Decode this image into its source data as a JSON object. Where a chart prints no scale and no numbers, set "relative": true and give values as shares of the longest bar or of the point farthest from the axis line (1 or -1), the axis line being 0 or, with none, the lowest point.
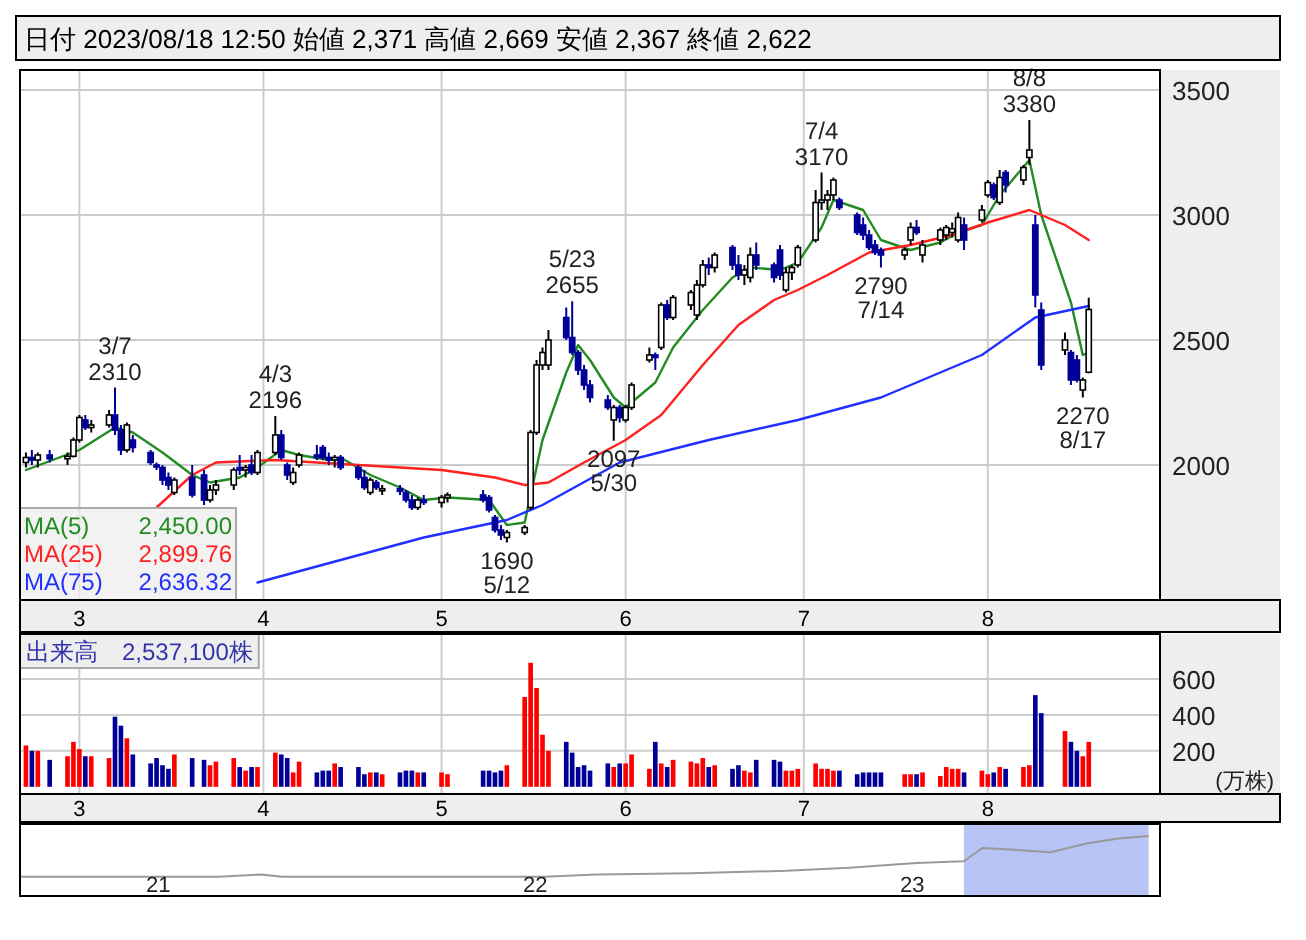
{
  "chart_data": [
    {
      "type": "candlestick",
      "title": "日付 2023/08/18 12:50 始値 2,371 高値 2,669 安値 2,367 終値 2,622",
      "x": [
        "2023-02-20",
        "2023-02-21",
        "2023-02-22",
        "2023-02-24",
        "2023-02-27",
        "2023-02-28",
        "2023-03-01",
        "2023-03-02",
        "2023-03-03",
        "2023-03-06",
        "2023-03-07",
        "2023-03-08",
        "2023-03-09",
        "2023-03-10",
        "2023-03-13",
        "2023-03-14",
        "2023-03-15",
        "2023-03-16",
        "2023-03-17",
        "2023-03-20",
        "2023-03-22",
        "2023-03-23",
        "2023-03-24",
        "2023-03-27",
        "2023-03-28",
        "2023-03-29",
        "2023-03-30",
        "2023-03-31",
        "2023-04-03",
        "2023-04-04",
        "2023-04-05",
        "2023-04-06",
        "2023-04-07",
        "2023-04-10",
        "2023-04-11",
        "2023-04-12",
        "2023-04-13",
        "2023-04-14",
        "2023-04-17",
        "2023-04-18",
        "2023-04-19",
        "2023-04-20",
        "2023-04-21",
        "2023-04-24",
        "2023-04-25",
        "2023-04-26",
        "2023-04-27",
        "2023-04-28",
        "2023-05-01",
        "2023-05-02",
        "2023-05-08",
        "2023-05-09",
        "2023-05-10",
        "2023-05-11",
        "2023-05-12",
        "2023-05-15",
        "2023-05-16",
        "2023-05-17",
        "2023-05-18",
        "2023-05-19",
        "2023-05-22",
        "2023-05-23",
        "2023-05-24",
        "2023-05-25",
        "2023-05-26",
        "2023-05-29",
        "2023-05-30",
        "2023-05-31",
        "2023-06-01",
        "2023-06-02",
        "2023-06-05",
        "2023-06-06",
        "2023-06-07",
        "2023-06-08",
        "2023-06-09",
        "2023-06-12",
        "2023-06-13",
        "2023-06-14",
        "2023-06-15",
        "2023-06-16",
        "2023-06-19",
        "2023-06-20",
        "2023-06-21",
        "2023-06-22",
        "2023-06-23",
        "2023-06-26",
        "2023-06-27",
        "2023-06-28",
        "2023-06-29",
        "2023-06-30",
        "2023-07-03",
        "2023-07-04",
        "2023-07-05",
        "2023-07-06",
        "2023-07-07",
        "2023-07-10",
        "2023-07-11",
        "2023-07-12",
        "2023-07-13",
        "2023-07-14",
        "2023-07-18",
        "2023-07-19",
        "2023-07-20",
        "2023-07-21",
        "2023-07-24",
        "2023-07-25",
        "2023-07-26",
        "2023-07-27",
        "2023-07-28",
        "2023-07-31",
        "2023-08-01",
        "2023-08-02",
        "2023-08-03",
        "2023-08-04",
        "2023-08-07",
        "2023-08-08",
        "2023-08-09",
        "2023-08-10",
        "2023-08-14",
        "2023-08-15",
        "2023-08-16",
        "2023-08-17",
        "2023-08-18"
      ],
      "ohlc": [
        [
          2010,
          2050,
          1990,
          2030
        ],
        [
          2030,
          2060,
          2000,
          2020
        ],
        [
          2020,
          2050,
          1990,
          2040
        ],
        [
          2040,
          2060,
          2010,
          2025
        ],
        [
          2025,
          2050,
          2000,
          2035
        ],
        [
          2035,
          2110,
          2030,
          2100
        ],
        [
          2100,
          2200,
          2090,
          2190
        ],
        [
          2180,
          2200,
          2140,
          2150
        ],
        [
          2150,
          2180,
          2130,
          2160
        ],
        [
          2160,
          2220,
          2150,
          2200
        ],
        [
          2200,
          2310,
          2120,
          2140
        ],
        [
          2140,
          2160,
          2040,
          2060
        ],
        [
          2060,
          2170,
          2050,
          2160
        ],
        [
          2100,
          2120,
          2050,
          2070
        ],
        [
          2050,
          2060,
          2000,
          2010
        ],
        [
          2000,
          2010,
          1980,
          1995
        ],
        [
          1990,
          2000,
          1920,
          1940
        ],
        [
          1950,
          1970,
          1900,
          1920
        ],
        [
          1890,
          1950,
          1880,
          1940
        ],
        [
          1950,
          2000,
          1870,
          1880
        ],
        [
          1960,
          1980,
          1840,
          1860
        ],
        [
          1860,
          1920,
          1850,
          1900
        ],
        [
          1900,
          1940,
          1880,
          1920
        ],
        [
          1920,
          1990,
          1900,
          1980
        ],
        [
          1990,
          2040,
          1960,
          1980
        ],
        [
          1980,
          2000,
          1950,
          1990
        ],
        [
          2000,
          2040,
          1960,
          1970
        ],
        [
          1970,
          2060,
          1960,
          2050
        ],
        [
          2050,
          2196,
          2040,
          2120
        ],
        [
          2120,
          2140,
          2020,
          2030
        ],
        [
          2000,
          2010,
          1940,
          1960
        ],
        [
          1930,
          1990,
          1920,
          1970
        ],
        [
          2000,
          2050,
          1990,
          2040
        ],
        [
          2040,
          2080,
          2020,
          2030
        ],
        [
          2070,
          2080,
          2020,
          2030
        ],
        [
          2030,
          2050,
          2000,
          2020
        ],
        [
          2020,
          2040,
          1990,
          2030
        ],
        [
          2030,
          2040,
          1980,
          1990
        ],
        [
          1990,
          2000,
          1940,
          1950
        ],
        [
          1950,
          1980,
          1900,
          1910
        ],
        [
          1890,
          1950,
          1880,
          1940
        ],
        [
          1930,
          1940,
          1900,
          1910
        ],
        [
          1900,
          1920,
          1880,
          1905
        ],
        [
          1905,
          1920,
          1880,
          1895
        ],
        [
          1890,
          1900,
          1850,
          1860
        ],
        [
          1860,
          1880,
          1820,
          1830
        ],
        [
          1830,
          1870,
          1820,
          1860
        ],
        [
          1860,
          1880,
          1840,
          1850
        ],
        [
          1850,
          1880,
          1830,
          1870
        ],
        [
          1870,
          1890,
          1850,
          1880
        ],
        [
          1880,
          1900,
          1850,
          1860
        ],
        [
          1870,
          1880,
          1810,
          1820
        ],
        [
          1790,
          1800,
          1730,
          1740
        ],
        [
          1740,
          1760,
          1700,
          1720
        ],
        [
          1710,
          1740,
          1690,
          1730
        ],
        [
          1730,
          1760,
          1720,
          1750
        ],
        [
          1830,
          2140,
          1820,
          2130
        ],
        [
          2130,
          2420,
          2120,
          2400
        ],
        [
          2400,
          2470,
          2380,
          2450
        ],
        [
          2400,
          2540,
          2380,
          2500
        ],
        [
          2590,
          2630,
          2500,
          2510
        ],
        [
          2510,
          2655,
          2440,
          2450
        ],
        [
          2450,
          2460,
          2360,
          2380
        ],
        [
          2380,
          2400,
          2300,
          2320
        ],
        [
          2320,
          2340,
          2250,
          2270
        ],
        [
          2260,
          2280,
          2220,
          2230
        ],
        [
          2180,
          2240,
          2097,
          2230
        ],
        [
          2230,
          2240,
          2170,
          2190
        ],
        [
          2180,
          2240,
          2170,
          2230
        ],
        [
          2230,
          2330,
          2220,
          2320
        ],
        [
          2420,
          2470,
          2410,
          2440
        ],
        [
          2440,
          2450,
          2380,
          2430
        ],
        [
          2470,
          2650,
          2460,
          2640
        ],
        [
          2640,
          2660,
          2580,
          2590
        ],
        [
          2590,
          2680,
          2580,
          2670
        ],
        [
          2640,
          2700,
          2620,
          2690
        ],
        [
          2600,
          2740,
          2580,
          2720
        ],
        [
          2720,
          2820,
          2710,
          2800
        ],
        [
          2800,
          2830,
          2760,
          2790
        ],
        [
          2790,
          2850,
          2770,
          2840
        ],
        [
          2870,
          2880,
          2780,
          2800
        ],
        [
          2800,
          2840,
          2740,
          2760
        ],
        [
          2760,
          2800,
          2720,
          2780
        ],
        [
          2750,
          2870,
          2730,
          2840
        ],
        [
          2840,
          2890,
          2780,
          2800
        ],
        [
          2800,
          2810,
          2730,
          2750
        ],
        [
          2860,
          2880,
          2740,
          2760
        ],
        [
          2700,
          2790,
          2690,
          2770
        ],
        [
          2770,
          2800,
          2740,
          2790
        ],
        [
          2800,
          2880,
          2790,
          2870
        ],
        [
          2900,
          3100,
          2890,
          3050
        ],
        [
          3050,
          3170,
          3020,
          3060
        ],
        [
          3060,
          3100,
          3020,
          3080
        ],
        [
          3080,
          3150,
          3060,
          3140
        ],
        [
          3060,
          3070,
          3020,
          3030
        ],
        [
          3000,
          3010,
          2920,
          2930
        ],
        [
          2960,
          2990,
          2900,
          2920
        ],
        [
          2920,
          2940,
          2860,
          2870
        ],
        [
          2880,
          2900,
          2840,
          2850
        ],
        [
          2860,
          2870,
          2790,
          2840
        ],
        [
          2840,
          2870,
          2820,
          2860
        ],
        [
          2900,
          2970,
          2880,
          2950
        ],
        [
          2950,
          2980,
          2920,
          2930
        ],
        [
          2840,
          2900,
          2810,
          2880
        ],
        [
          2900,
          2950,
          2880,
          2940
        ],
        [
          2920,
          2960,
          2900,
          2950
        ],
        [
          2930,
          2970,
          2910,
          2945
        ],
        [
          2900,
          3010,
          2890,
          2990
        ],
        [
          2960,
          2990,
          2860,
          2900
        ],
        [
          2980,
          3040,
          2970,
          3020
        ],
        [
          3080,
          3140,
          3070,
          3130
        ],
        [
          3120,
          3130,
          3060,
          3070
        ],
        [
          3050,
          3180,
          3040,
          3150
        ],
        [
          3170,
          3180,
          3090,
          3120
        ],
        [
          3140,
          3200,
          3120,
          3190
        ],
        [
          3230,
          3380,
          3200,
          3260
        ],
        [
          2960,
          3000,
          2630,
          2680
        ],
        [
          2620,
          2650,
          2380,
          2400
        ],
        [
          2460,
          2530,
          2440,
          2500
        ],
        [
          2450,
          2460,
          2320,
          2340
        ],
        [
          2420,
          2440,
          2330,
          2340
        ],
        [
          2300,
          2350,
          2270,
          2340
        ],
        [
          2371,
          2669,
          2367,
          2622
        ]
      ],
      "colors": [
        "#ffffff",
        "#000099",
        "#ffffff",
        "#000099",
        "#ffffff",
        "#ffffff",
        "#ffffff",
        "#000099",
        "#ffffff",
        "#ffffff",
        "#000099",
        "#000099",
        "#ffffff",
        "#000099",
        "#000099",
        "#000099",
        "#000099",
        "#000099",
        "#ffffff",
        "#000099",
        "#000099",
        "#ffffff",
        "#ffffff",
        "#ffffff",
        "#000099",
        "#ffffff",
        "#000099",
        "#ffffff",
        "#ffffff",
        "#000099",
        "#000099",
        "#ffffff",
        "#ffffff",
        "#000099",
        "#000099",
        "#000099",
        "#ffffff",
        "#000099",
        "#000099",
        "#000099",
        "#ffffff",
        "#000099",
        "#ffffff",
        "#000099",
        "#000099",
        "#000099",
        "#ffffff",
        "#000099",
        "#ffffff",
        "#ffffff",
        "#000099",
        "#000099",
        "#000099",
        "#000099",
        "#ffffff",
        "#ffffff",
        "#ffffff",
        "#ffffff",
        "#ffffff",
        "#ffffff",
        "#000099",
        "#000099",
        "#000099",
        "#000099",
        "#000099",
        "#000099",
        "#ffffff",
        "#000099",
        "#ffffff",
        "#ffffff",
        "#ffffff",
        "#000099",
        "#ffffff",
        "#000099",
        "#ffffff",
        "#ffffff",
        "#ffffff",
        "#ffffff",
        "#000099",
        "#ffffff",
        "#000099",
        "#000099",
        "#ffffff",
        "#ffffff",
        "#000099",
        "#000099",
        "#000099",
        "#ffffff",
        "#ffffff",
        "#ffffff",
        "#ffffff",
        "#ffffff",
        "#ffffff",
        "#ffffff",
        "#000099",
        "#000099",
        "#000099",
        "#000099",
        "#000099",
        "#000099",
        "#ffffff",
        "#ffffff",
        "#000099",
        "#ffffff",
        "#ffffff",
        "#ffffff",
        "#ffffff",
        "#ffffff",
        "#000099",
        "#ffffff",
        "#ffffff",
        "#000099",
        "#ffffff",
        "#000099",
        "#ffffff",
        "#ffffff",
        "#000099",
        "#000099",
        "#ffffff",
        "#000099",
        "#000099",
        "#ffffff",
        "#ffffff"
      ],
      "series": [
        {
          "name": "MA(5)",
          "type": "line",
          "color": "#228b22",
          "x": [
            "2023-02-20",
            "2023-03-01",
            "2023-03-07",
            "2023-03-10",
            "2023-03-15",
            "2023-03-20",
            "2023-03-23",
            "2023-03-28",
            "2023-03-31",
            "2023-04-04",
            "2023-04-07",
            "2023-04-12",
            "2023-04-14",
            "2023-04-19",
            "2023-04-24",
            "2023-04-28",
            "2023-05-02",
            "2023-05-09",
            "2023-05-12",
            "2023-05-15",
            "2023-05-18",
            "2023-05-22",
            "2023-05-24",
            "2023-05-26",
            "2023-05-30",
            "2023-06-01",
            "2023-06-06",
            "2023-06-09",
            "2023-06-14",
            "2023-06-19",
            "2023-06-22",
            "2023-06-27",
            "2023-06-30",
            "2023-07-04",
            "2023-07-06",
            "2023-07-11",
            "2023-07-14",
            "2023-07-19",
            "2023-07-24",
            "2023-07-27",
            "2023-07-31",
            "2023-08-03",
            "2023-08-08",
            "2023-08-10",
            "2023-08-15",
            "2023-08-17",
            "2023-08-18"
          ],
          "values": [
            1980,
            2060,
            2150,
            2130,
            2050,
            1960,
            1930,
            1950,
            1990,
            2060,
            2040,
            2020,
            2030,
            1960,
            1910,
            1860,
            1870,
            1860,
            1760,
            1770,
            2100,
            2370,
            2480,
            2420,
            2270,
            2230,
            2330,
            2470,
            2620,
            2750,
            2790,
            2780,
            2810,
            2950,
            3060,
            3020,
            2900,
            2860,
            2890,
            2930,
            2960,
            3080,
            3220,
            3000,
            2650,
            2440,
            2450
          ]
        },
        {
          "name": "MA(25)",
          "type": "line",
          "color": "#ff2020",
          "x": [
            "2023-03-14",
            "2023-03-20",
            "2023-03-24",
            "2023-04-03",
            "2023-04-10",
            "2023-04-17",
            "2023-04-24",
            "2023-05-01",
            "2023-05-10",
            "2023-05-15",
            "2023-05-19",
            "2023-05-25",
            "2023-06-01",
            "2023-06-07",
            "2023-06-14",
            "2023-06-20",
            "2023-06-26",
            "2023-06-30",
            "2023-07-05",
            "2023-07-12",
            "2023-07-19",
            "2023-07-26",
            "2023-08-01",
            "2023-08-08",
            "2023-08-14",
            "2023-08-18"
          ],
          "values": [
            1830,
            1960,
            2010,
            2020,
            2010,
            2000,
            1990,
            1980,
            1950,
            1920,
            1930,
            2010,
            2100,
            2200,
            2400,
            2560,
            2660,
            2700,
            2760,
            2850,
            2880,
            2920,
            2970,
            3020,
            2960,
            2900
          ]
        },
        {
          "name": "MA(75)",
          "type": "line",
          "color": "#2030ff",
          "x": [
            "2023-03-31",
            "2023-04-14",
            "2023-04-28",
            "2023-05-12",
            "2023-05-18",
            "2023-05-31",
            "2023-06-15",
            "2023-06-30",
            "2023-07-14",
            "2023-07-31",
            "2023-08-09",
            "2023-08-18"
          ],
          "values": [
            1530,
            1620,
            1710,
            1780,
            1840,
            2010,
            2100,
            2180,
            2270,
            2440,
            2590,
            2636
          ]
        }
      ],
      "xlim": [
        "2023-02-19",
        "2023-08-30"
      ],
      "xticks": [
        {
          "value": "2023-03-01",
          "label": "3"
        },
        {
          "value": "2023-04-01",
          "label": "4"
        },
        {
          "value": "2023-05-01",
          "label": "5"
        },
        {
          "value": "2023-06-01",
          "label": "6"
        },
        {
          "value": "2023-07-01",
          "label": "7"
        },
        {
          "value": "2023-08-01",
          "label": "8"
        }
      ],
      "ylim": [
        1460,
        3580
      ],
      "yticks": [
        2000,
        2500,
        3000,
        3500
      ],
      "grid": true,
      "legend": "bottom left",
      "annotations": [
        {
          "text": "3/7\n2310",
          "x": "2023-03-07",
          "y": 2310
        },
        {
          "text": "4/3\n2196",
          "x": "2023-04-03",
          "y": 2196
        },
        {
          "text": "1690\n5/12",
          "x": "2023-05-12",
          "y": 1690
        },
        {
          "text": "5/23\n2655",
          "x": "2023-05-23",
          "y": 2655
        },
        {
          "text": "2097\n5/30",
          "x": "2023-05-30",
          "y": 2097
        },
        {
          "text": "7/4\n3170",
          "x": "2023-07-04",
          "y": 3170
        },
        {
          "text": "2790\n7/14",
          "x": "2023-07-14",
          "y": 2790
        },
        {
          "text": "8/8\n3380",
          "x": "2023-08-08",
          "y": 3380
        },
        {
          "text": "2270\n8/17",
          "x": "2023-08-17",
          "y": 2270
        },
        "2,450.00",
        "2,899.76",
        "2,636.32"
      ]
    },
    {
      "type": "bar",
      "title": "出来高　2,537,100株",
      "ylabel": "(万株)",
      "x": [
        "2023-02-20",
        "2023-02-21",
        "2023-02-22",
        "2023-02-24",
        "2023-02-27",
        "2023-02-28",
        "2023-03-01",
        "2023-03-02",
        "2023-03-03",
        "2023-03-06",
        "2023-03-07",
        "2023-03-08",
        "2023-03-09",
        "2023-03-10",
        "2023-03-13",
        "2023-03-14",
        "2023-03-15",
        "2023-03-16",
        "2023-03-17",
        "2023-03-20",
        "2023-03-22",
        "2023-03-23",
        "2023-03-24",
        "2023-03-27",
        "2023-03-28",
        "2023-03-29",
        "2023-03-30",
        "2023-03-31",
        "2023-04-03",
        "2023-04-04",
        "2023-04-05",
        "2023-04-06",
        "2023-04-07",
        "2023-04-10",
        "2023-04-11",
        "2023-04-12",
        "2023-04-13",
        "2023-04-14",
        "2023-04-17",
        "2023-04-18",
        "2023-04-19",
        "2023-04-20",
        "2023-04-21",
        "2023-04-24",
        "2023-04-25",
        "2023-04-26",
        "2023-04-27",
        "2023-04-28",
        "2023-05-01",
        "2023-05-02",
        "2023-05-08",
        "2023-05-09",
        "2023-05-10",
        "2023-05-11",
        "2023-05-12",
        "2023-05-15",
        "2023-05-16",
        "2023-05-17",
        "2023-05-18",
        "2023-05-19",
        "2023-05-22",
        "2023-05-23",
        "2023-05-24",
        "2023-05-25",
        "2023-05-26",
        "2023-05-29",
        "2023-05-30",
        "2023-05-31",
        "2023-06-01",
        "2023-06-02",
        "2023-06-05",
        "2023-06-06",
        "2023-06-07",
        "2023-06-08",
        "2023-06-09",
        "2023-06-12",
        "2023-06-13",
        "2023-06-14",
        "2023-06-15",
        "2023-06-16",
        "2023-06-19",
        "2023-06-20",
        "2023-06-21",
        "2023-06-22",
        "2023-06-23",
        "2023-06-26",
        "2023-06-27",
        "2023-06-28",
        "2023-06-29",
        "2023-06-30",
        "2023-07-03",
        "2023-07-04",
        "2023-07-05",
        "2023-07-06",
        "2023-07-07",
        "2023-07-10",
        "2023-07-11",
        "2023-07-12",
        "2023-07-13",
        "2023-07-14",
        "2023-07-18",
        "2023-07-19",
        "2023-07-20",
        "2023-07-21",
        "2023-07-24",
        "2023-07-25",
        "2023-07-26",
        "2023-07-27",
        "2023-07-28",
        "2023-07-31",
        "2023-08-01",
        "2023-08-02",
        "2023-08-03",
        "2023-08-04",
        "2023-08-07",
        "2023-08-08",
        "2023-08-09",
        "2023-08-10",
        "2023-08-14",
        "2023-08-15",
        "2023-08-16",
        "2023-08-17",
        "2023-08-18"
      ],
      "values": [
        230,
        200,
        200,
        150,
        170,
        250,
        210,
        170,
        170,
        160,
        390,
        340,
        270,
        180,
        130,
        160,
        120,
        100,
        180,
        160,
        150,
        120,
        140,
        160,
        110,
        90,
        110,
        110,
        190,
        180,
        160,
        80,
        140,
        80,
        90,
        90,
        130,
        110,
        110,
        70,
        80,
        80,
        70,
        80,
        90,
        90,
        80,
        80,
        80,
        70,
        90,
        90,
        80,
        90,
        120,
        500,
        690,
        550,
        290,
        200,
        250,
        190,
        110,
        120,
        90,
        130,
        110,
        130,
        130,
        180,
        100,
        250,
        130,
        110,
        150,
        140,
        130,
        160,
        110,
        120,
        100,
        120,
        90,
        80,
        150,
        150,
        140,
        90,
        90,
        100,
        130,
        100,
        100,
        90,
        90,
        70,
        80,
        80,
        80,
        80,
        70,
        70,
        70,
        80,
        60,
        110,
        100,
        100,
        80,
        90,
        70,
        80,
        110,
        100,
        110,
        120,
        510,
        410,
        310,
        250,
        200,
        170,
        250
      ],
      "colors": [
        "#ff0000",
        "#000099",
        "#ff0000",
        "#000099",
        "#ff0000",
        "#ff0000",
        "#ff0000",
        "#000099",
        "#ff0000",
        "#ff0000",
        "#000099",
        "#000099",
        "#ff0000",
        "#000099",
        "#000099",
        "#000099",
        "#000099",
        "#000099",
        "#ff0000",
        "#000099",
        "#000099",
        "#ff0000",
        "#ff0000",
        "#ff0000",
        "#000099",
        "#ff0000",
        "#000099",
        "#ff0000",
        "#ff0000",
        "#000099",
        "#000099",
        "#ff0000",
        "#ff0000",
        "#000099",
        "#000099",
        "#000099",
        "#ff0000",
        "#000099",
        "#000099",
        "#000099",
        "#ff0000",
        "#000099",
        "#ff0000",
        "#000099",
        "#000099",
        "#000099",
        "#ff0000",
        "#000099",
        "#ff0000",
        "#ff0000",
        "#000099",
        "#000099",
        "#000099",
        "#000099",
        "#ff0000",
        "#ff0000",
        "#ff0000",
        "#ff0000",
        "#ff0000",
        "#ff0000",
        "#000099",
        "#000099",
        "#000099",
        "#000099",
        "#000099",
        "#000099",
        "#ff0000",
        "#000099",
        "#ff0000",
        "#ff0000",
        "#ff0000",
        "#000099",
        "#ff0000",
        "#000099",
        "#ff0000",
        "#ff0000",
        "#ff0000",
        "#ff0000",
        "#000099",
        "#ff0000",
        "#000099",
        "#000099",
        "#ff0000",
        "#ff0000",
        "#000099",
        "#000099",
        "#000099",
        "#ff0000",
        "#ff0000",
        "#ff0000",
        "#ff0000",
        "#ff0000",
        "#ff0000",
        "#ff0000",
        "#000099",
        "#000099",
        "#000099",
        "#000099",
        "#000099",
        "#000099",
        "#ff0000",
        "#ff0000",
        "#000099",
        "#ff0000",
        "#ff0000",
        "#ff0000",
        "#ff0000",
        "#ff0000",
        "#000099",
        "#ff0000",
        "#ff0000",
        "#000099",
        "#ff0000",
        "#000099",
        "#ff0000",
        "#ff0000",
        "#000099",
        "#000099",
        "#ff0000",
        "#000099",
        "#000099",
        "#ff0000",
        "#ff0000"
      ],
      "xlim": [
        "2023-02-19",
        "2023-08-30"
      ],
      "xticks": [
        {
          "value": "2023-03-01",
          "label": "3"
        },
        {
          "value": "2023-04-01",
          "label": "4"
        },
        {
          "value": "2023-05-01",
          "label": "5"
        },
        {
          "value": "2023-06-01",
          "label": "6"
        },
        {
          "value": "2023-07-01",
          "label": "7"
        },
        {
          "value": "2023-08-01",
          "label": "8"
        }
      ],
      "ylim": [
        -40,
        850
      ],
      "yticks": [
        200,
        400,
        600
      ],
      "grid": true
    },
    {
      "type": "line",
      "relative": true,
      "color": "#999999",
      "x": [
        "2020-08-20",
        "2021-03-01",
        "2021-04-10",
        "2021-05-01",
        "2022-01-10",
        "2022-03-01",
        "2022-06-01",
        "2022-09-01",
        "2022-11-01",
        "2023-01-05",
        "2023-02-20",
        "2023-03-10",
        "2023-04-10",
        "2023-05-15",
        "2023-06-20",
        "2023-07-20",
        "2023-08-18"
      ],
      "values": [
        0.32,
        0.32,
        0.36,
        0.32,
        0.32,
        0.36,
        0.38,
        0.42,
        0.47,
        0.55,
        0.58,
        0.8,
        0.77,
        0.73,
        0.88,
        0.96,
        1
      ],
      "xlim": [
        "2020-08-20",
        "2023-08-29"
      ],
      "xticks": [
        {
          "value": "2021-01-01",
          "label": "21"
        },
        {
          "value": "2022-01-01",
          "label": "22"
        },
        {
          "value": "2023-01-01",
          "label": "23"
        }
      ],
      "bands": [
        {
          "axis": "x",
          "from": "2023-02-20",
          "to": "2023-08-18",
          "color": "#b8c4f5"
        }
      ]
    }
  ]
}
